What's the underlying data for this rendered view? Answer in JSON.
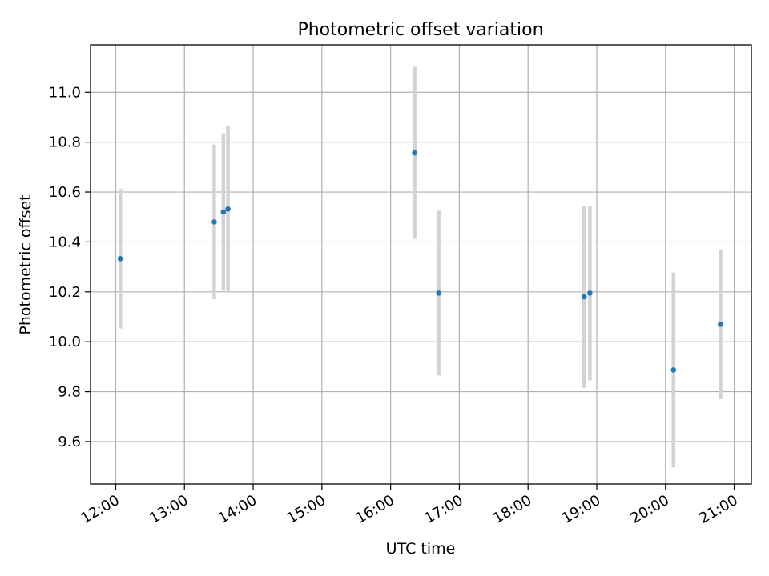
{
  "chart_data": {
    "type": "scatter",
    "title": "Photometric offset variation",
    "xlabel": "UTC time",
    "ylabel": "Photometric offset",
    "xlim": [
      "11:38",
      "21:15"
    ],
    "ylim": [
      9.43,
      11.19
    ],
    "x_ticks": [
      "12:00",
      "13:00",
      "14:00",
      "15:00",
      "16:00",
      "17:00",
      "18:00",
      "19:00",
      "20:00",
      "21:00"
    ],
    "y_ticks": [
      9.6,
      9.8,
      10.0,
      10.2,
      10.4,
      10.6,
      10.8,
      11.0
    ],
    "grid": true,
    "legend": "none",
    "colors": {
      "point": "#1f77b4",
      "errorbar": "#d3d3d3",
      "grid": "#b0b0b0"
    },
    "series": [
      {
        "points": [
          {
            "x": "12:04",
            "y": 10.333,
            "err": 0.28
          },
          {
            "x": "13:26",
            "y": 10.48,
            "err": 0.31
          },
          {
            "x": "13:34",
            "y": 10.52,
            "err": 0.315
          },
          {
            "x": "13:38",
            "y": 10.532,
            "err": 0.335
          },
          {
            "x": "16:21",
            "y": 10.757,
            "err": 0.345
          },
          {
            "x": "16:42",
            "y": 10.195,
            "err": 0.33
          },
          {
            "x": "18:49",
            "y": 10.18,
            "err": 0.365
          },
          {
            "x": "18:54",
            "y": 10.195,
            "err": 0.35
          },
          {
            "x": "20:07",
            "y": 9.887,
            "err": 0.39
          },
          {
            "x": "20:48",
            "y": 10.07,
            "err": 0.3
          }
        ]
      }
    ]
  }
}
